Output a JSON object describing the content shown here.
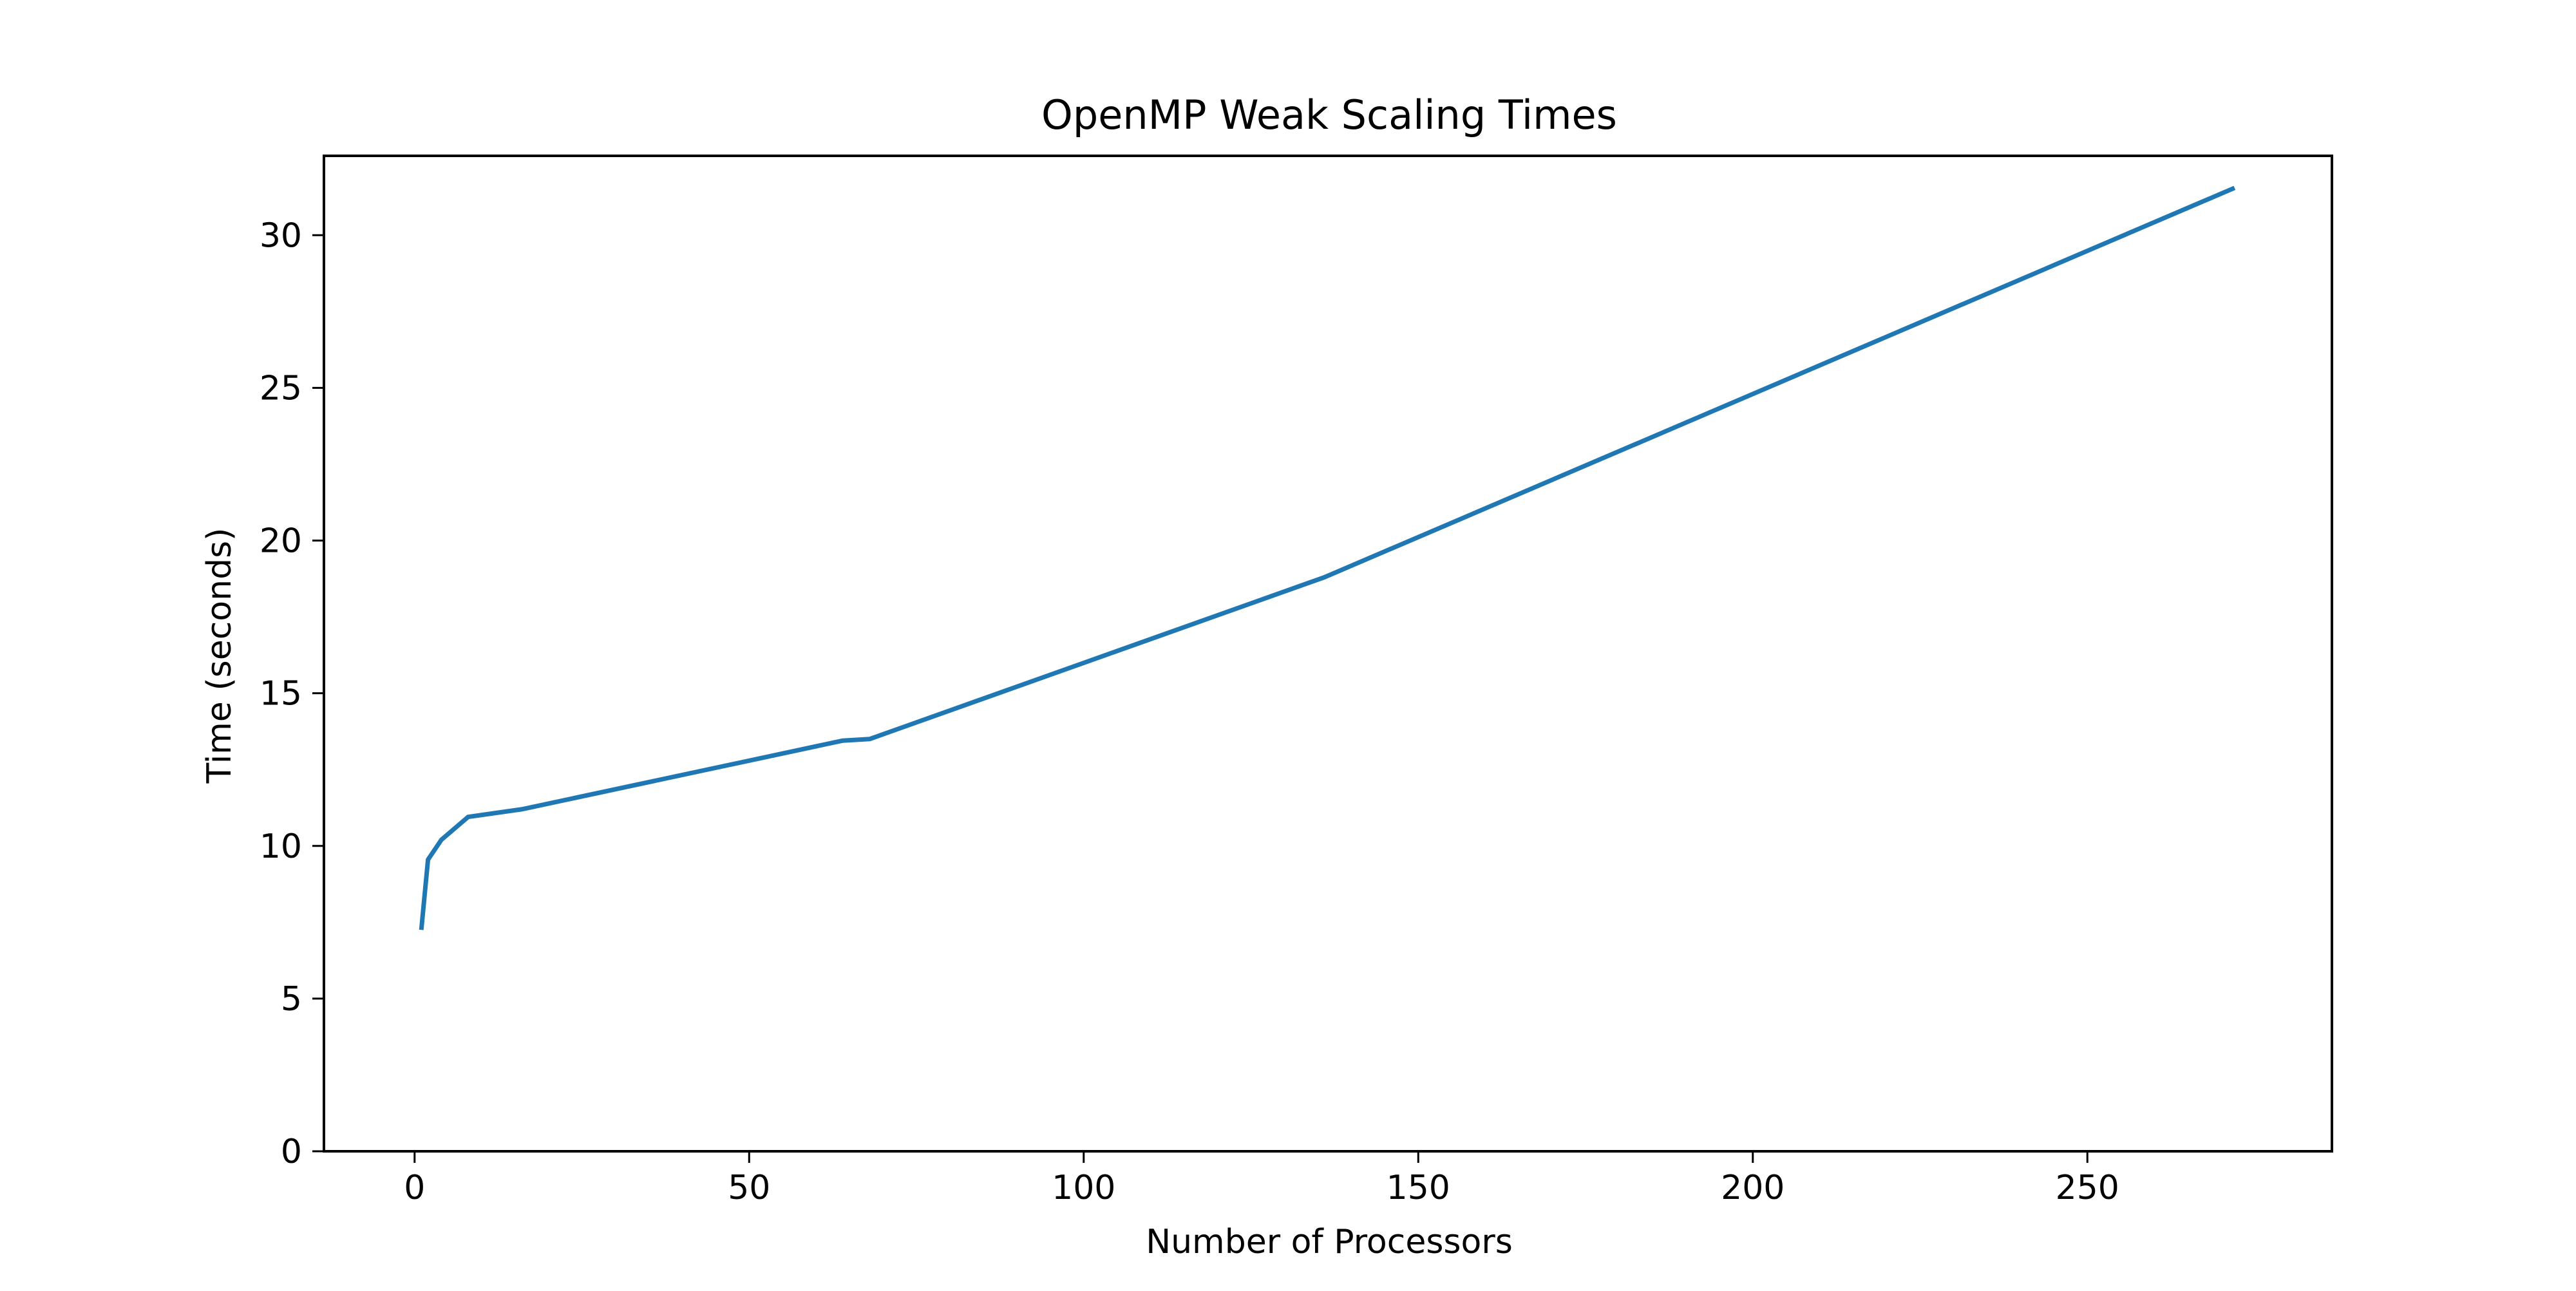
{
  "chart_data": {
    "type": "line",
    "title": "OpenMP Weak Scaling Times",
    "xlabel": "Number of Processors",
    "ylabel": "Time (seconds)",
    "xlim": [
      -13.55,
      286.55
    ],
    "ylim": [
      0,
      32.6
    ],
    "xticks": [
      0,
      50,
      100,
      150,
      200,
      250
    ],
    "yticks": [
      0,
      5,
      10,
      15,
      20,
      25,
      30
    ],
    "grid": false,
    "series": [
      {
        "color": "#1f77b4",
        "x": [
          1,
          2,
          4,
          8,
          16,
          64,
          68,
          136,
          272
        ],
        "y": [
          7.25,
          9.55,
          10.2,
          10.95,
          11.2,
          13.45,
          13.5,
          18.8,
          31.55
        ]
      }
    ]
  }
}
